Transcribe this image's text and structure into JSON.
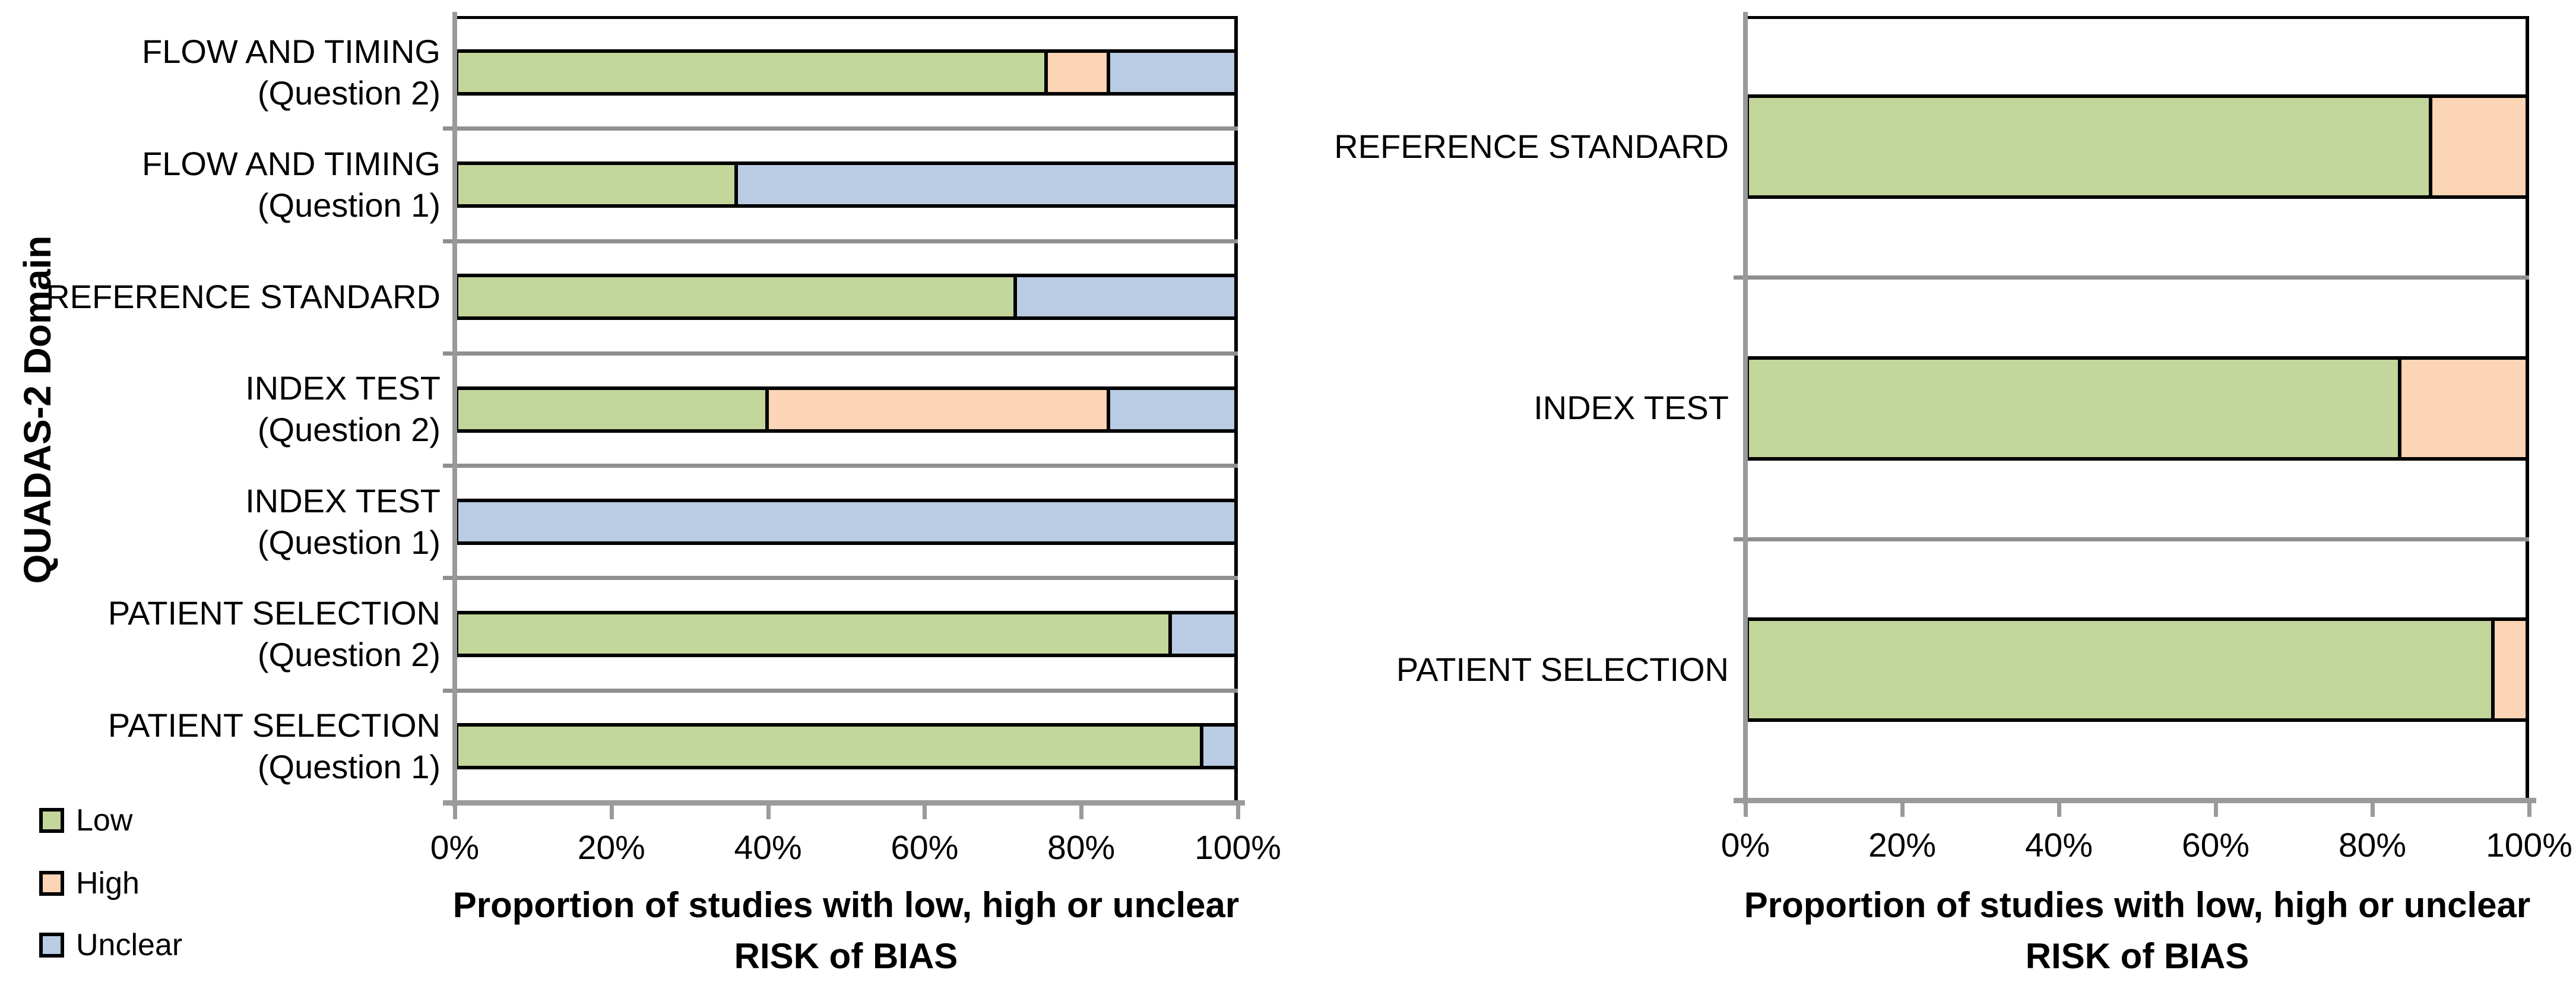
{
  "figure": {
    "background": "#FFFFFF",
    "description": "Two horizontal stacked bar charts of QUADAS-2 risk of bias proportions"
  },
  "colors": {
    "low": "#C3D69B",
    "high": "#FBD5B5",
    "unclear": "#B9CCE4",
    "bar_border": "#000000",
    "axis_gray": "#9A9A9A",
    "separator_gray": "#8F8F8F"
  },
  "legend": {
    "position": "bottom-left",
    "entries": [
      {
        "label": "Low",
        "color": "#C3D69B"
      },
      {
        "label": "High",
        "color": "#FBD5B5"
      },
      {
        "label": "Unclear",
        "color": "#B9CCE4"
      }
    ]
  },
  "chart_data": [
    {
      "type": "bar",
      "orientation": "horizontal-stacked",
      "title_lines": [
        "Proportion of studies with low, high or unclear",
        "RISK of BIAS"
      ],
      "title": "Proportion of studies with low, high or unclear RISK of BIAS",
      "ylabel": "QUADAS-2 Domain",
      "xlim": [
        0,
        100
      ],
      "xtick_labels": [
        "0%",
        "20%",
        "40%",
        "60%",
        "80%",
        "100%"
      ],
      "grid": "category-separators-only",
      "categories": [
        "FLOW AND TIMING\n(Question 2)",
        "FLOW AND TIMING\n(Question 1)",
        "REFERENCE STANDARD",
        "INDEX TEST\n(Question 2)",
        "INDEX TEST\n(Question 1)",
        "PATIENT SELECTION\n(Question 2)",
        "PATIENT SELECTION\n(Question 1)"
      ],
      "series": [
        {
          "name": "Low",
          "color": "#C3D69B",
          "values": [
            76,
            36,
            72,
            40,
            0,
            92,
            96
          ]
        },
        {
          "name": "High",
          "color": "#FBD5B5",
          "values": [
            8,
            0,
            0,
            44,
            0,
            0,
            0
          ]
        },
        {
          "name": "Unclear",
          "color": "#B9CCE4",
          "values": [
            16,
            64,
            28,
            16,
            100,
            8,
            4
          ]
        }
      ]
    },
    {
      "type": "bar",
      "orientation": "horizontal-stacked",
      "title_lines": [
        "Proportion of studies with low, high or unclear",
        "RISK of BIAS"
      ],
      "title": "Proportion of studies with low, high or unclear RISK of BIAS",
      "ylabel": "",
      "xlim": [
        0,
        100
      ],
      "xtick_labels": [
        "0%",
        "20%",
        "40%",
        "60%",
        "80%",
        "100%"
      ],
      "grid": "category-separators-only",
      "categories": [
        "REFERENCE STANDARD",
        "INDEX TEST",
        "PATIENT SELECTION"
      ],
      "series": [
        {
          "name": "Low",
          "color": "#C3D69B",
          "values": [
            88,
            84,
            96
          ]
        },
        {
          "name": "High",
          "color": "#FBD5B5",
          "values": [
            12,
            16,
            4
          ]
        },
        {
          "name": "Unclear",
          "color": "#B9CCE4",
          "values": [
            0,
            0,
            0
          ]
        }
      ]
    }
  ]
}
